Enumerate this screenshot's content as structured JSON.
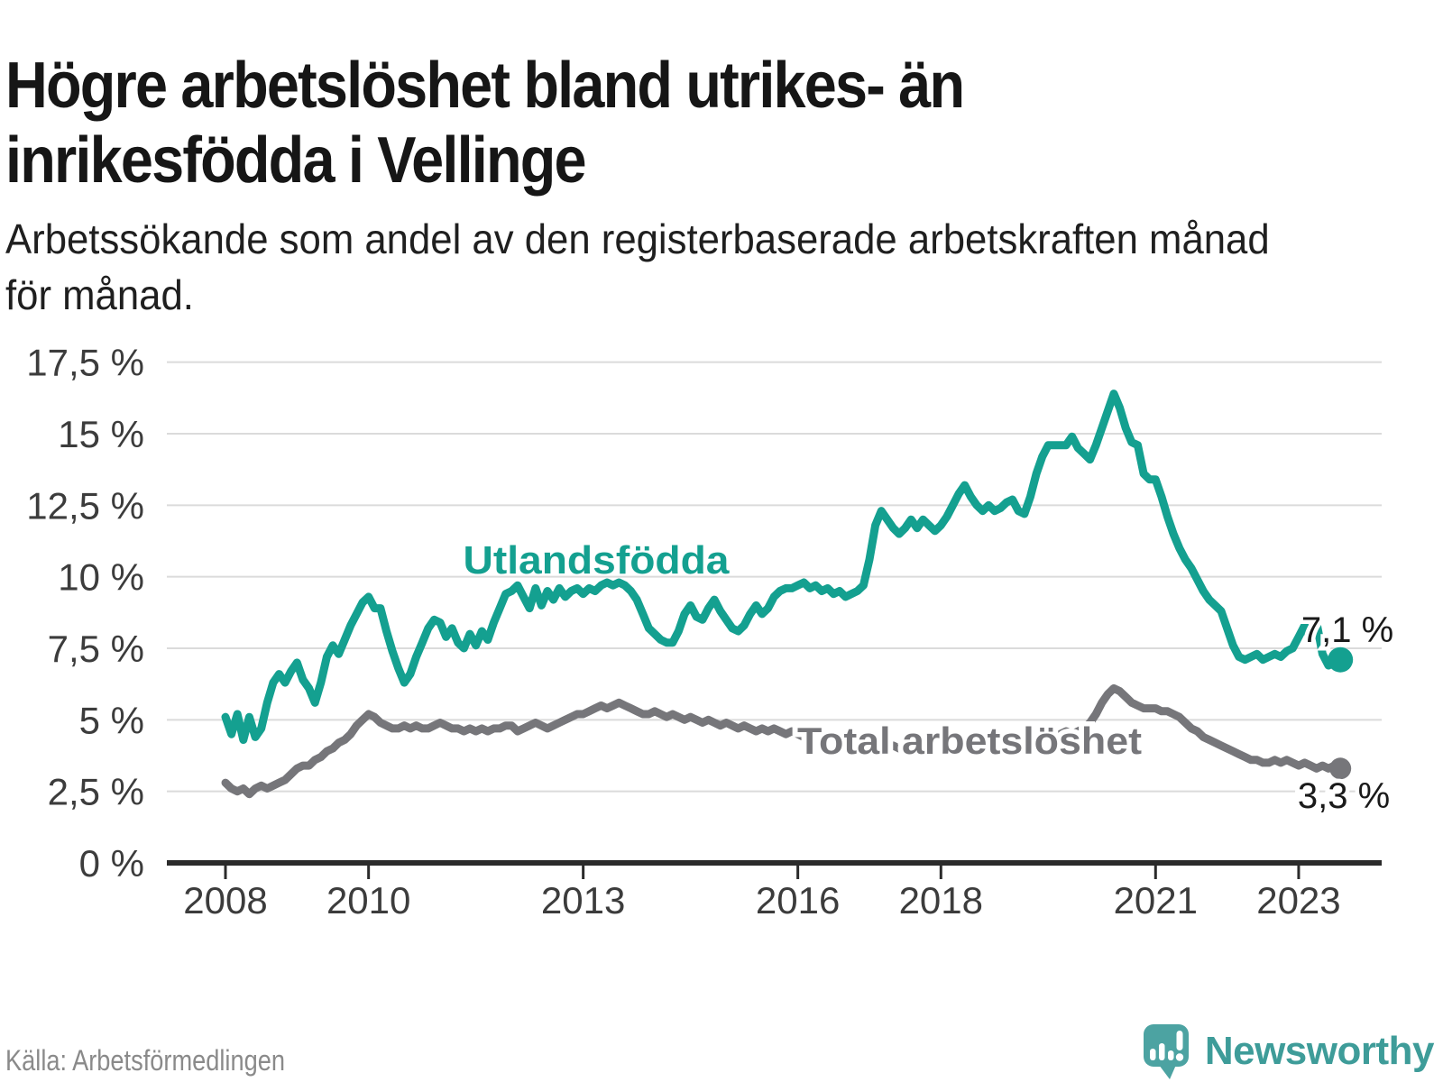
{
  "header": {
    "title_line1": "Högre arbetslöshet bland utrikes- än",
    "title_line2": "inrikesfödda i Vellinge",
    "subtitle_line1": "Arbetssökande som andel av den registerbaserade arbetskraften månad",
    "subtitle_line2": "för månad."
  },
  "footer": {
    "source": "Källa: Arbetsförmedlingen",
    "brand": "Newsworthy"
  },
  "colors": {
    "teal_line": "#14a090",
    "gray_line": "#76767a",
    "grid": "#dbdbdb",
    "axis": "#2b2b2b",
    "tick_text": "#3c3c3c",
    "label_text": "#1a1a1a",
    "source_text": "#8a8a8a",
    "brand_icon": "#4ca3a2",
    "brand_text": "#3e9c99"
  },
  "chart_data": {
    "type": "line",
    "title": "Högre arbetslöshet bland utrikes- än inrikesfödda i Vellinge",
    "subtitle": "Arbetssökande som andel av den registerbaserade arbetskraften månad för månad.",
    "unit": "%",
    "frequency": "monthly",
    "x_start": "2008-01",
    "x_end": "2023-08",
    "ylim": [
      0,
      17.5
    ],
    "grid": true,
    "legend_position": "inline-labels",
    "x_ticks": [
      2008,
      2010,
      2013,
      2016,
      2018,
      2021,
      2023
    ],
    "y_ticks": [
      {
        "value": 0,
        "label": "0 %"
      },
      {
        "value": 2.5,
        "label": "2,5 %"
      },
      {
        "value": 5,
        "label": "5 %"
      },
      {
        "value": 7.5,
        "label": "7,5 %"
      },
      {
        "value": 10,
        "label": "10 %"
      },
      {
        "value": 12.5,
        "label": "12,5 %"
      },
      {
        "value": 15,
        "label": "15 %"
      },
      {
        "value": 17.5,
        "label": "17,5 %"
      }
    ],
    "series": [
      {
        "id": "utlandsfodda",
        "name": "Utlandsfödda",
        "color": "#14a090",
        "end_value": 7.1,
        "end_label": "7,1 %",
        "values": [
          5.1,
          4.5,
          5.2,
          4.3,
          5.1,
          4.4,
          4.7,
          5.6,
          6.3,
          6.6,
          6.3,
          6.7,
          7.0,
          6.4,
          6.1,
          5.6,
          6.3,
          7.2,
          7.6,
          7.3,
          7.8,
          8.3,
          8.7,
          9.1,
          9.3,
          8.9,
          8.9,
          8.1,
          7.4,
          6.8,
          6.3,
          6.6,
          7.2,
          7.7,
          8.2,
          8.5,
          8.4,
          7.9,
          8.2,
          7.7,
          7.5,
          8.0,
          7.6,
          8.1,
          7.8,
          8.4,
          8.9,
          9.4,
          9.5,
          9.7,
          9.3,
          8.9,
          9.6,
          9.0,
          9.5,
          9.2,
          9.6,
          9.3,
          9.5,
          9.6,
          9.4,
          9.6,
          9.5,
          9.7,
          9.8,
          9.7,
          9.8,
          9.7,
          9.5,
          9.2,
          8.7,
          8.2,
          8.0,
          7.8,
          7.7,
          7.7,
          8.1,
          8.7,
          9.0,
          8.6,
          8.5,
          8.9,
          9.2,
          8.8,
          8.5,
          8.2,
          8.1,
          8.3,
          8.7,
          9.0,
          8.7,
          8.9,
          9.3,
          9.5,
          9.6,
          9.6,
          9.7,
          9.8,
          9.6,
          9.7,
          9.5,
          9.6,
          9.4,
          9.5,
          9.3,
          9.4,
          9.5,
          9.7,
          10.6,
          11.8,
          12.3,
          12.0,
          11.7,
          11.5,
          11.7,
          12.0,
          11.7,
          12.0,
          11.8,
          11.6,
          11.8,
          12.1,
          12.5,
          12.9,
          13.2,
          12.8,
          12.5,
          12.3,
          12.5,
          12.3,
          12.4,
          12.6,
          12.7,
          12.3,
          12.2,
          12.8,
          13.6,
          14.2,
          14.6,
          14.6,
          14.6,
          14.6,
          14.9,
          14.5,
          14.3,
          14.1,
          14.6,
          15.2,
          15.8,
          16.4,
          15.9,
          15.2,
          14.7,
          14.6,
          13.6,
          13.4,
          13.4,
          12.8,
          12.1,
          11.5,
          11.0,
          10.6,
          10.3,
          9.9,
          9.5,
          9.2,
          9.0,
          8.8,
          8.2,
          7.6,
          7.2,
          7.1,
          7.2,
          7.3,
          7.1,
          7.2,
          7.3,
          7.2,
          7.4,
          7.5,
          7.9,
          8.3,
          7.8,
          8.4,
          7.3,
          6.9,
          7.0,
          7.1
        ]
      },
      {
        "id": "total",
        "name": "Total arbetslöshet",
        "color": "#76767a",
        "end_value": 3.3,
        "end_label": "3,3 %",
        "values": [
          2.8,
          2.6,
          2.5,
          2.6,
          2.4,
          2.6,
          2.7,
          2.6,
          2.7,
          2.8,
          2.9,
          3.1,
          3.3,
          3.4,
          3.4,
          3.6,
          3.7,
          3.9,
          4.0,
          4.2,
          4.3,
          4.5,
          4.8,
          5.0,
          5.2,
          5.1,
          4.9,
          4.8,
          4.7,
          4.7,
          4.8,
          4.7,
          4.8,
          4.7,
          4.7,
          4.8,
          4.9,
          4.8,
          4.7,
          4.7,
          4.6,
          4.7,
          4.6,
          4.7,
          4.6,
          4.7,
          4.7,
          4.8,
          4.8,
          4.6,
          4.7,
          4.8,
          4.9,
          4.8,
          4.7,
          4.8,
          4.9,
          5.0,
          5.1,
          5.2,
          5.2,
          5.3,
          5.4,
          5.5,
          5.4,
          5.5,
          5.6,
          5.5,
          5.4,
          5.3,
          5.2,
          5.2,
          5.3,
          5.2,
          5.1,
          5.2,
          5.1,
          5.0,
          5.1,
          5.0,
          4.9,
          5.0,
          4.9,
          4.8,
          4.9,
          4.8,
          4.7,
          4.8,
          4.7,
          4.6,
          4.7,
          4.6,
          4.7,
          4.6,
          4.5,
          4.6,
          4.5,
          4.4,
          4.5,
          4.4,
          4.3,
          4.4,
          4.3,
          4.2,
          4.3,
          4.2,
          4.1,
          4.2,
          4.1,
          4.2,
          4.1,
          4.0,
          4.1,
          4.0,
          4.1,
          4.0,
          4.1,
          4.0,
          4.1,
          4.2,
          4.1,
          4.0,
          4.1,
          4.0,
          4.1,
          4.2,
          4.1,
          4.2,
          4.1,
          4.2,
          4.3,
          4.2,
          4.3,
          4.2,
          4.3,
          4.4,
          4.3,
          4.4,
          4.5,
          4.4,
          4.5,
          4.6,
          4.5,
          4.6,
          4.7,
          4.9,
          5.2,
          5.6,
          5.9,
          6.1,
          6.0,
          5.8,
          5.6,
          5.5,
          5.4,
          5.4,
          5.4,
          5.3,
          5.3,
          5.2,
          5.1,
          4.9,
          4.7,
          4.6,
          4.4,
          4.3,
          4.2,
          4.1,
          4.0,
          3.9,
          3.8,
          3.7,
          3.6,
          3.6,
          3.5,
          3.5,
          3.6,
          3.5,
          3.6,
          3.5,
          3.4,
          3.5,
          3.4,
          3.3,
          3.4,
          3.3,
          3.4,
          3.3
        ]
      }
    ]
  }
}
